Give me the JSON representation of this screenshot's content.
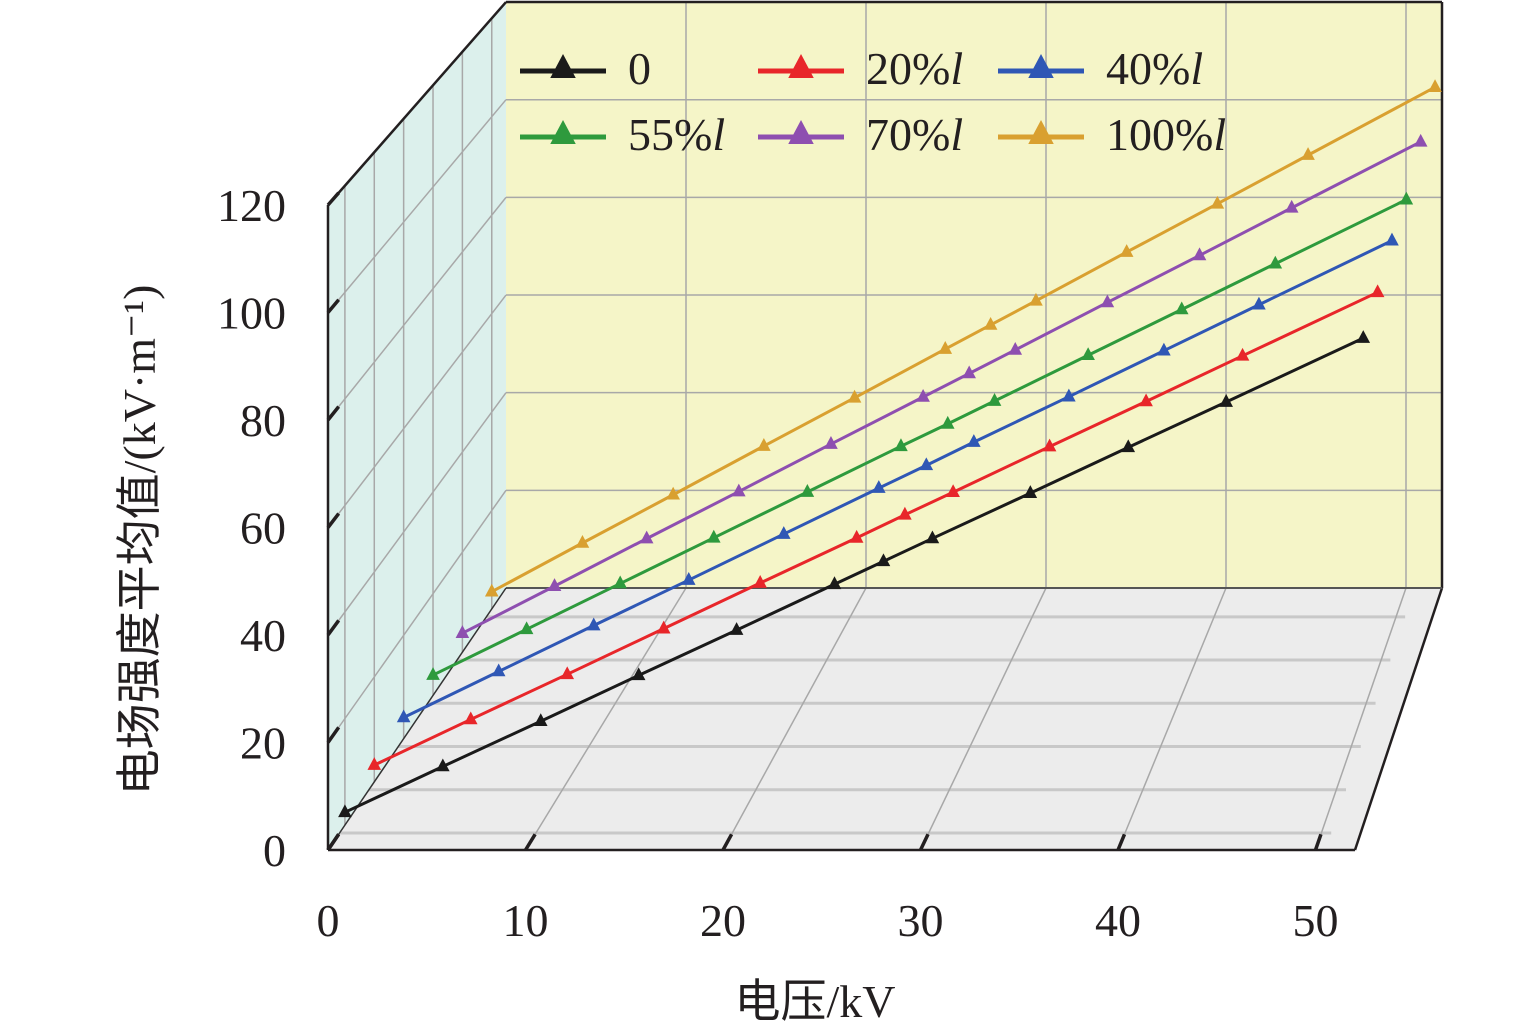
{
  "chart_data": {
    "type": "line",
    "subtype": "3d-line",
    "xlabel": "电压/kV",
    "ylabel": "电场强度平均值/(kV·m⁻¹)",
    "xlim": [
      0,
      52
    ],
    "ylim": [
      0,
      120
    ],
    "xticks": [
      "0",
      "10",
      "20",
      "30",
      "40",
      "50"
    ],
    "yticks": [
      "0",
      "20",
      "40",
      "60",
      "80",
      "100",
      "120"
    ],
    "grid": true,
    "legend_position": "top-inside",
    "x": [
      0,
      5,
      10,
      15,
      20,
      25,
      27.5,
      30,
      35,
      40,
      45,
      52
    ],
    "series": [
      {
        "name": "0",
        "color": "#1a1a1a",
        "values": [
          2.4,
          11.0,
          19.5,
          28.1,
          36.6,
          45.2,
          49.5,
          53.8,
          62.3,
          70.9,
          79.4,
          91.4
        ]
      },
      {
        "name": "20%l",
        "color": "#e8262a",
        "values": [
          3.2,
          11.9,
          20.5,
          29.2,
          37.9,
          46.5,
          50.9,
          55.2,
          63.9,
          72.5,
          81.2,
          93.3
        ]
      },
      {
        "name": "40%l",
        "color": "#2f57b5",
        "values": [
          4.1,
          13.0,
          21.9,
          30.7,
          39.6,
          48.5,
          52.9,
          57.4,
          66.2,
          75.1,
          84.0,
          96.4
        ]
      },
      {
        "name": "55%l",
        "color": "#2e9a3d",
        "values": [
          4.0,
          13.0,
          22.0,
          31.0,
          40.0,
          49.0,
          53.4,
          57.9,
          66.9,
          75.9,
          84.9,
          97.5
        ]
      },
      {
        "name": "70%l",
        "color": "#8e4fb0",
        "values": [
          3.8,
          13.2,
          22.7,
          32.1,
          41.6,
          51.0,
          55.7,
          60.4,
          69.9,
          79.3,
          88.8,
          102.0
        ]
      },
      {
        "name": "100%l",
        "color": "#d9a030",
        "values": [
          3.5,
          13.4,
          23.2,
          33.1,
          42.9,
          52.8,
          57.7,
          62.6,
          72.5,
          82.3,
          92.2,
          106.0
        ]
      }
    ]
  },
  "colors": {
    "left_wall": "#dcf0ec",
    "back_wall": "#f5f5c8",
    "floor": "#ececec",
    "grid": "#a8a8a8",
    "axis": "#231f20"
  }
}
